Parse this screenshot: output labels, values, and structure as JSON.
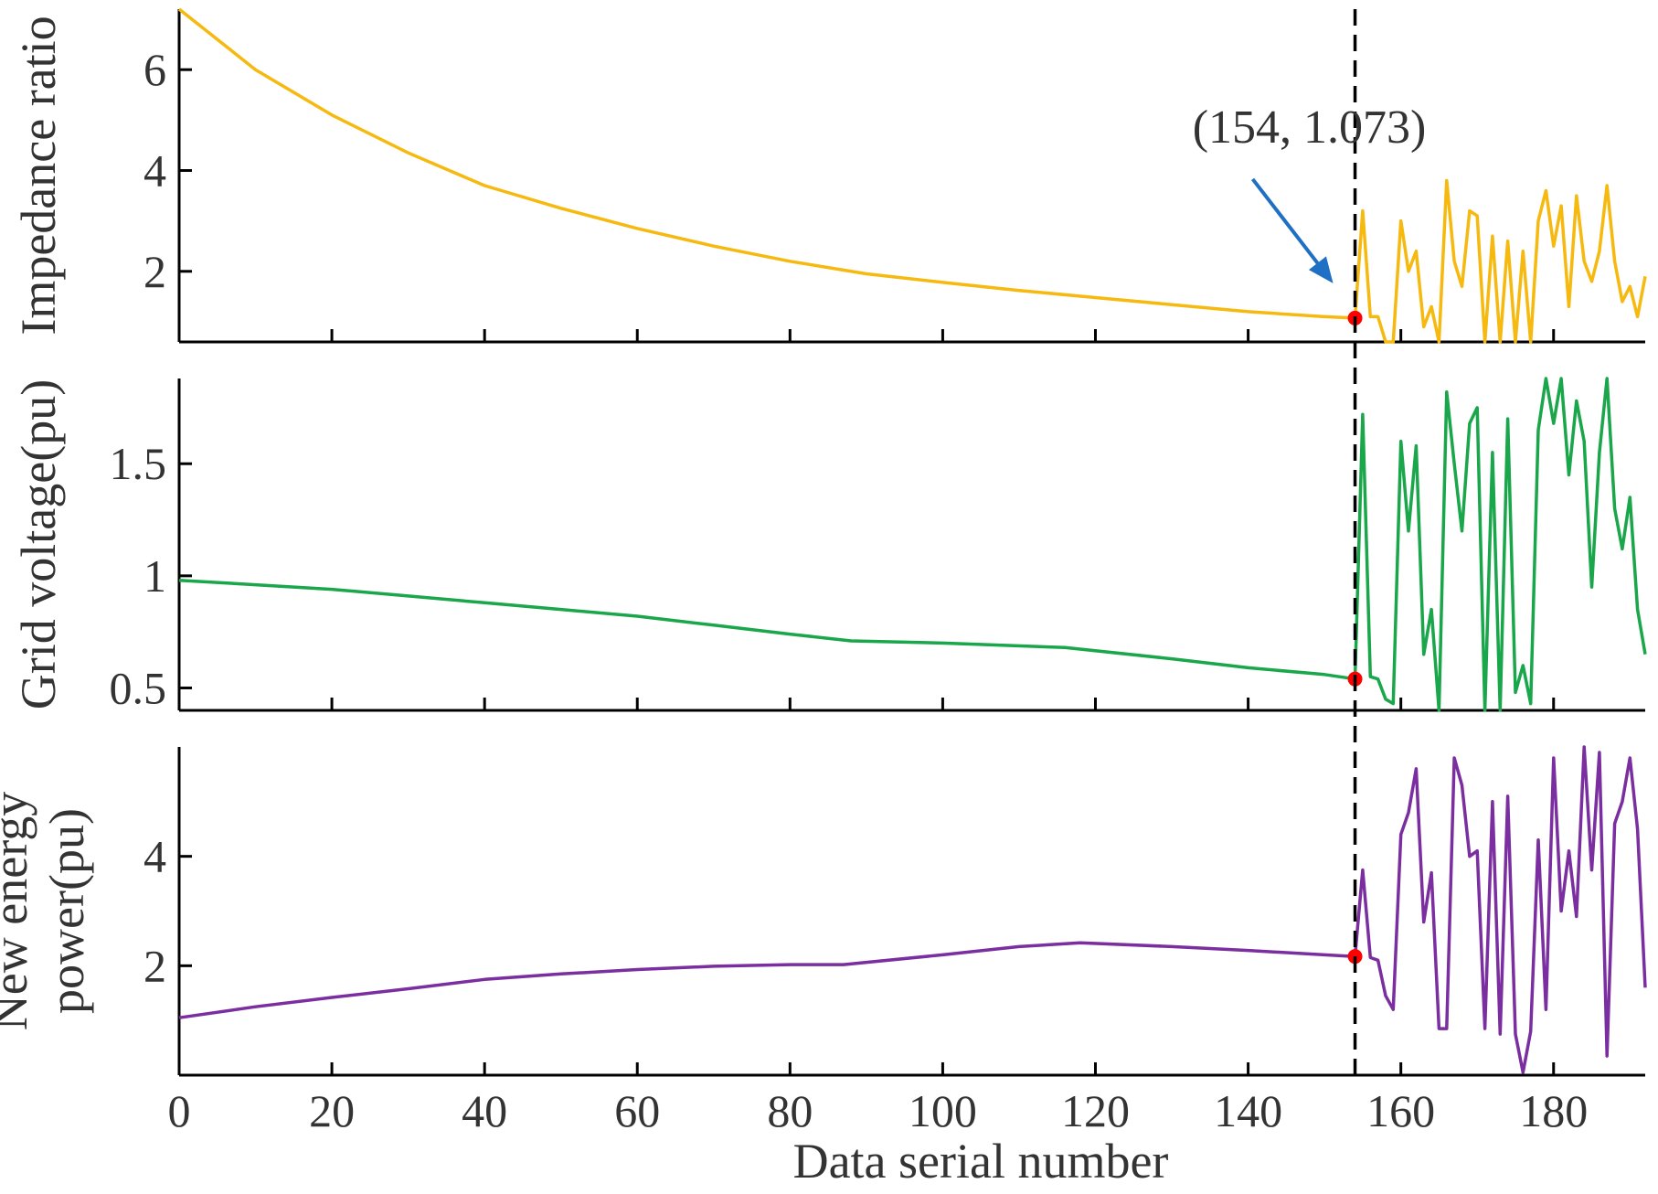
{
  "chart_data": {
    "type": "line",
    "xlabel": "Data serial number",
    "xlim": [
      0,
      192
    ],
    "xticks": [
      0,
      20,
      40,
      60,
      80,
      100,
      120,
      140,
      160,
      180
    ],
    "vertical_line": {
      "x": 154,
      "style": "dashed",
      "color": "#000000"
    },
    "annotation": {
      "text": "(154, 1.073)",
      "x": 154,
      "y": 1.073,
      "arrow_color": "#1f6fc4"
    },
    "marker_color": "#ff0000",
    "panels": [
      {
        "ylabel": [
          "Impedance ratio"
        ],
        "ylim": [
          0.6,
          7.2
        ],
        "yticks": [
          2,
          4,
          6
        ],
        "series": [
          {
            "color": "#f6b90f",
            "marker_at_x": 154,
            "x": [
              0,
              10,
              20,
              30,
              40,
              50,
              60,
              70,
              80,
              90,
              100,
              110,
              120,
              130,
              140,
              150,
              154,
              155,
              156,
              157,
              158,
              159,
              160,
              161,
              162,
              163,
              164,
              165,
              166,
              167,
              168,
              169,
              170,
              171,
              172,
              173,
              174,
              175,
              176,
              177,
              178,
              179,
              180,
              181,
              182,
              183,
              184,
              185,
              186,
              187,
              188,
              189,
              190,
              191,
              192
            ],
            "values": [
              7.2,
              6.0,
              5.1,
              4.35,
              3.7,
              3.25,
              2.85,
              2.5,
              2.2,
              1.95,
              1.78,
              1.62,
              1.48,
              1.34,
              1.2,
              1.1,
              1.073,
              3.2,
              1.1,
              1.1,
              0.6,
              0.6,
              3.0,
              2.0,
              2.4,
              0.9,
              1.3,
              0.6,
              3.8,
              2.2,
              1.7,
              3.2,
              3.1,
              0.6,
              2.7,
              0.6,
              2.6,
              0.6,
              2.4,
              0.6,
              3.0,
              3.6,
              2.5,
              3.3,
              1.3,
              3.5,
              2.2,
              1.8,
              2.4,
              3.7,
              2.2,
              1.4,
              1.7,
              1.1,
              1.9
            ]
          }
        ]
      },
      {
        "ylabel": [
          "Grid voltage(pu)"
        ],
        "ylim": [
          0.4,
          1.88
        ],
        "yticks": [
          0.5,
          1,
          1.5
        ],
        "series": [
          {
            "color": "#1aa64a",
            "marker_at_x": 154,
            "x": [
              0,
              10,
              20,
              30,
              40,
              50,
              60,
              70,
              80,
              88,
              100,
              116,
              130,
              140,
              150,
              154,
              155,
              156,
              157,
              158,
              159,
              160,
              161,
              162,
              163,
              164,
              165,
              166,
              167,
              168,
              169,
              170,
              171,
              172,
              173,
              174,
              175,
              176,
              177,
              178,
              179,
              180,
              181,
              182,
              183,
              184,
              185,
              186,
              187,
              188,
              189,
              190,
              191,
              192
            ],
            "values": [
              0.98,
              0.96,
              0.94,
              0.91,
              0.88,
              0.85,
              0.82,
              0.78,
              0.74,
              0.71,
              0.7,
              0.68,
              0.63,
              0.59,
              0.56,
              0.54,
              1.72,
              0.55,
              0.54,
              0.45,
              0.43,
              1.6,
              1.2,
              1.58,
              0.65,
              0.85,
              0.4,
              1.82,
              1.5,
              1.2,
              1.68,
              1.75,
              0.4,
              1.55,
              0.4,
              1.7,
              0.48,
              0.6,
              0.43,
              1.65,
              1.88,
              1.68,
              1.88,
              1.45,
              1.78,
              1.6,
              0.95,
              1.55,
              1.88,
              1.3,
              1.12,
              1.35,
              0.85,
              0.65
            ]
          }
        ]
      },
      {
        "ylabel": [
          "New energy",
          "power(pu)"
        ],
        "ylim": [
          0,
          6
        ],
        "yticks": [
          2,
          4
        ],
        "series": [
          {
            "color": "#7b2ea0",
            "marker_at_x": 154,
            "x": [
              0,
              10,
              20,
              30,
              40,
              50,
              60,
              70,
              80,
              87,
              100,
              110,
              118,
              130,
              140,
              150,
              154,
              155,
              156,
              157,
              158,
              159,
              160,
              161,
              162,
              163,
              164,
              165,
              166,
              167,
              168,
              169,
              170,
              171,
              172,
              173,
              174,
              175,
              176,
              177,
              178,
              179,
              180,
              181,
              182,
              183,
              184,
              185,
              186,
              187,
              188,
              189,
              190,
              191,
              192
            ],
            "values": [
              1.05,
              1.25,
              1.42,
              1.58,
              1.75,
              1.85,
              1.93,
              1.99,
              2.02,
              2.02,
              2.2,
              2.35,
              2.42,
              2.35,
              2.28,
              2.2,
              2.17,
              3.75,
              2.15,
              2.1,
              1.45,
              1.2,
              4.4,
              4.8,
              5.6,
              2.8,
              3.7,
              0.85,
              0.85,
              5.8,
              5.3,
              4.0,
              4.1,
              0.85,
              5.0,
              0.75,
              5.1,
              0.75,
              0.05,
              0.8,
              4.3,
              1.2,
              5.8,
              3.0,
              4.1,
              2.9,
              6.0,
              3.75,
              5.9,
              0.35,
              4.6,
              5.0,
              5.8,
              4.5,
              1.6
            ]
          }
        ]
      }
    ]
  }
}
